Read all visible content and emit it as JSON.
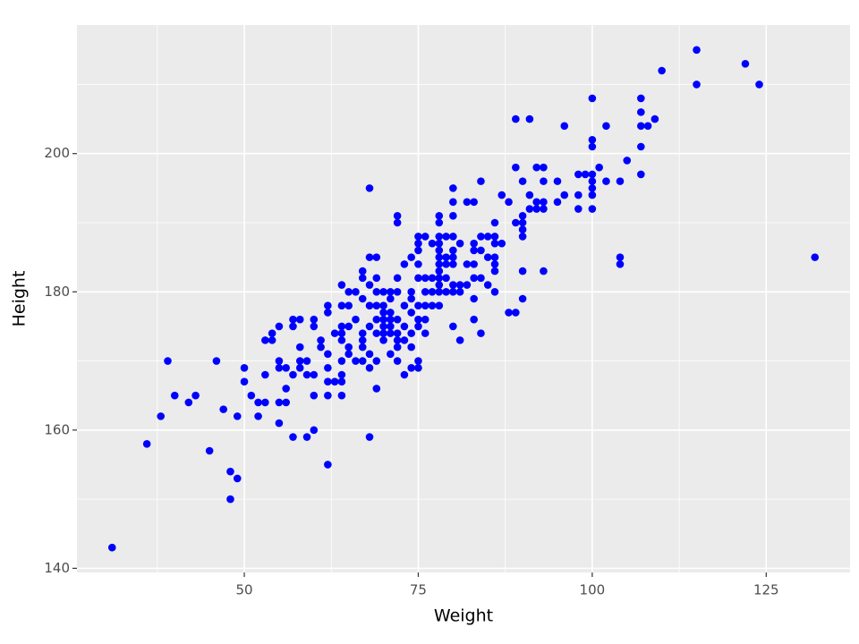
{
  "chart_data": {
    "type": "scatter",
    "x_label": "Weight",
    "y_label": "Height",
    "color": "#0000ff",
    "grid": true,
    "xlim": [
      25.95,
      137.05
    ],
    "ylim": [
      139.4,
      218.6
    ],
    "xticks": [
      50,
      75,
      100,
      125
    ],
    "yticks": [
      140,
      160,
      180,
      200
    ],
    "xminorticks": [
      37.5,
      62.5,
      87.5,
      112.5
    ],
    "yminorticks": [
      150,
      170,
      190,
      210
    ],
    "x": [
      31,
      36,
      38,
      39,
      40,
      42,
      43,
      45,
      46,
      47,
      48,
      48,
      49,
      49,
      50,
      50,
      51,
      52,
      52,
      53,
      53,
      53,
      54,
      54,
      55,
      55,
      55,
      55,
      55,
      56,
      56,
      56,
      57,
      57,
      57,
      57,
      58,
      58,
      58,
      58,
      59,
      59,
      59,
      60,
      60,
      60,
      60,
      60,
      61,
      61,
      62,
      62,
      62,
      62,
      62,
      62,
      62,
      63,
      63,
      64,
      64,
      64,
      64,
      64,
      64,
      64,
      64,
      64,
      65,
      65,
      65,
      65,
      65,
      66,
      66,
      66,
      67,
      67,
      67,
      67,
      67,
      67,
      67,
      68,
      68,
      68,
      68,
      68,
      68,
      68,
      68,
      69,
      69,
      69,
      69,
      69,
      69,
      69,
      69,
      70,
      70,
      70,
      70,
      70,
      70,
      70,
      71,
      71,
      71,
      71,
      71,
      71,
      71,
      72,
      72,
      72,
      72,
      72,
      72,
      72,
      72,
      72,
      73,
      73,
      73,
      73,
      73,
      74,
      74,
      74,
      74,
      74,
      74,
      74,
      75,
      75,
      75,
      75,
      75,
      75,
      75,
      75,
      75,
      75,
      76,
      76,
      76,
      76,
      76,
      76,
      77,
      77,
      77,
      77,
      78,
      78,
      78,
      78,
      78,
      78,
      78,
      78,
      78,
      78,
      78,
      78,
      79,
      79,
      79,
      79,
      79,
      80,
      80,
      80,
      80,
      80,
      80,
      80,
      80,
      80,
      80,
      81,
      81,
      81,
      81,
      82,
      82,
      82,
      83,
      83,
      83,
      83,
      83,
      83,
      83,
      84,
      84,
      84,
      84,
      84,
      85,
      85,
      85,
      86,
      86,
      86,
      86,
      86,
      86,
      86,
      87,
      87,
      88,
      88,
      89,
      89,
      89,
      89,
      90,
      90,
      90,
      90,
      90,
      90,
      90,
      91,
      91,
      91,
      92,
      92,
      92,
      93,
      93,
      93,
      93,
      93,
      95,
      95,
      96,
      96,
      98,
      98,
      98,
      99,
      100,
      100,
      100,
      100,
      100,
      100,
      100,
      100,
      101,
      102,
      102,
      104,
      104,
      104,
      105,
      107,
      107,
      107,
      107,
      107,
      108,
      109,
      110,
      115,
      115,
      122,
      124,
      132
    ],
    "y": [
      143,
      158,
      162,
      170,
      165,
      164,
      165,
      157,
      170,
      163,
      154,
      150,
      153,
      162,
      169,
      167,
      165,
      164,
      162,
      164,
      168,
      173,
      173,
      174,
      175,
      170,
      169,
      164,
      161,
      164,
      166,
      169,
      175,
      176,
      159,
      168,
      176,
      172,
      170,
      169,
      170,
      168,
      159,
      176,
      175,
      168,
      165,
      160,
      173,
      172,
      178,
      177,
      171,
      169,
      167,
      165,
      155,
      174,
      167,
      181,
      178,
      175,
      174,
      173,
      170,
      168,
      167,
      165,
      180,
      178,
      175,
      172,
      171,
      176,
      180,
      170,
      183,
      182,
      179,
      174,
      173,
      172,
      170,
      195,
      185,
      181,
      178,
      175,
      171,
      169,
      159,
      185,
      182,
      180,
      178,
      176,
      174,
      170,
      166,
      180,
      178,
      177,
      176,
      175,
      174,
      173,
      180,
      179,
      177,
      176,
      175,
      174,
      171,
      191,
      190,
      182,
      180,
      176,
      174,
      173,
      172,
      170,
      184,
      178,
      175,
      173,
      168,
      185,
      180,
      179,
      177,
      174,
      172,
      169,
      188,
      187,
      186,
      184,
      182,
      178,
      176,
      175,
      170,
      169,
      188,
      182,
      180,
      178,
      176,
      174,
      187,
      182,
      180,
      178,
      191,
      190,
      188,
      187,
      186,
      185,
      184,
      183,
      182,
      181,
      180,
      178,
      188,
      185,
      184,
      182,
      180,
      195,
      193,
      191,
      188,
      186,
      185,
      184,
      181,
      180,
      175,
      187,
      181,
      180,
      173,
      193,
      184,
      181,
      193,
      187,
      186,
      184,
      182,
      179,
      176,
      196,
      188,
      186,
      182,
      174,
      188,
      185,
      181,
      190,
      188,
      187,
      185,
      184,
      183,
      180,
      194,
      187,
      193,
      177,
      198,
      190,
      177,
      205,
      196,
      191,
      190,
      189,
      188,
      183,
      179,
      205,
      194,
      192,
      198,
      193,
      192,
      198,
      196,
      193,
      192,
      183,
      196,
      193,
      204,
      194,
      197,
      194,
      192,
      197,
      208,
      202,
      201,
      197,
      196,
      195,
      194,
      192,
      198,
      204,
      196,
      196,
      185,
      184,
      199,
      208,
      206,
      204,
      201,
      197,
      204,
      205,
      212,
      215,
      210,
      213,
      210,
      185
    ]
  }
}
